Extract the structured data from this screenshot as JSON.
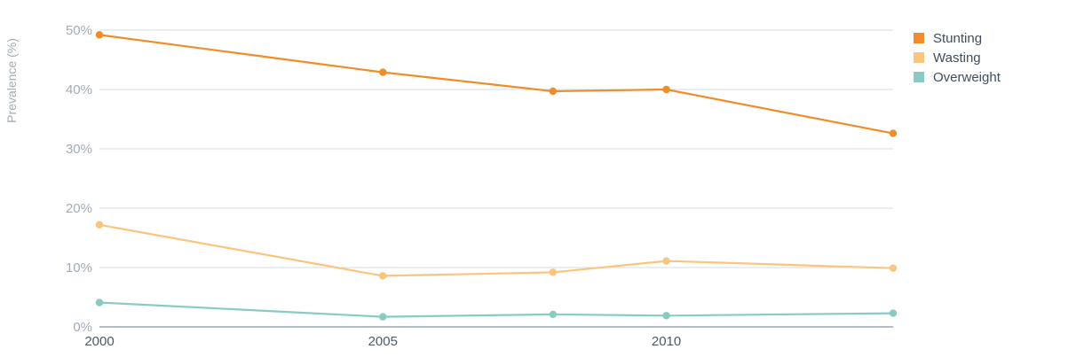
{
  "chart_data": {
    "type": "line",
    "title": "",
    "ylabel": "Prevalence (%)",
    "xlabel": "",
    "y_ticks": [
      "0%",
      "10%",
      "20%",
      "30%",
      "40%",
      "50%"
    ],
    "y_tick_values": [
      0,
      10,
      20,
      30,
      40,
      50
    ],
    "x_ticks": [
      "2000",
      "2005",
      "2010"
    ],
    "x_tick_values": [
      2000,
      2005,
      2010
    ],
    "xlim": [
      2000,
      2014
    ],
    "ylim": [
      0,
      50
    ],
    "grid": true,
    "legend_position": "top-right",
    "x": [
      2000,
      2005,
      2008,
      2010,
      2014
    ],
    "series": [
      {
        "name": "Stunting",
        "color": "#f28c28",
        "values": [
          49.2,
          42.9,
          39.7,
          40.0,
          32.6
        ]
      },
      {
        "name": "Wasting",
        "color": "#fbc57e",
        "values": [
          17.2,
          8.6,
          9.2,
          11.1,
          9.9
        ]
      },
      {
        "name": "Overweight",
        "color": "#88cbc4",
        "values": [
          4.1,
          1.7,
          2.1,
          1.9,
          2.3
        ]
      }
    ]
  }
}
